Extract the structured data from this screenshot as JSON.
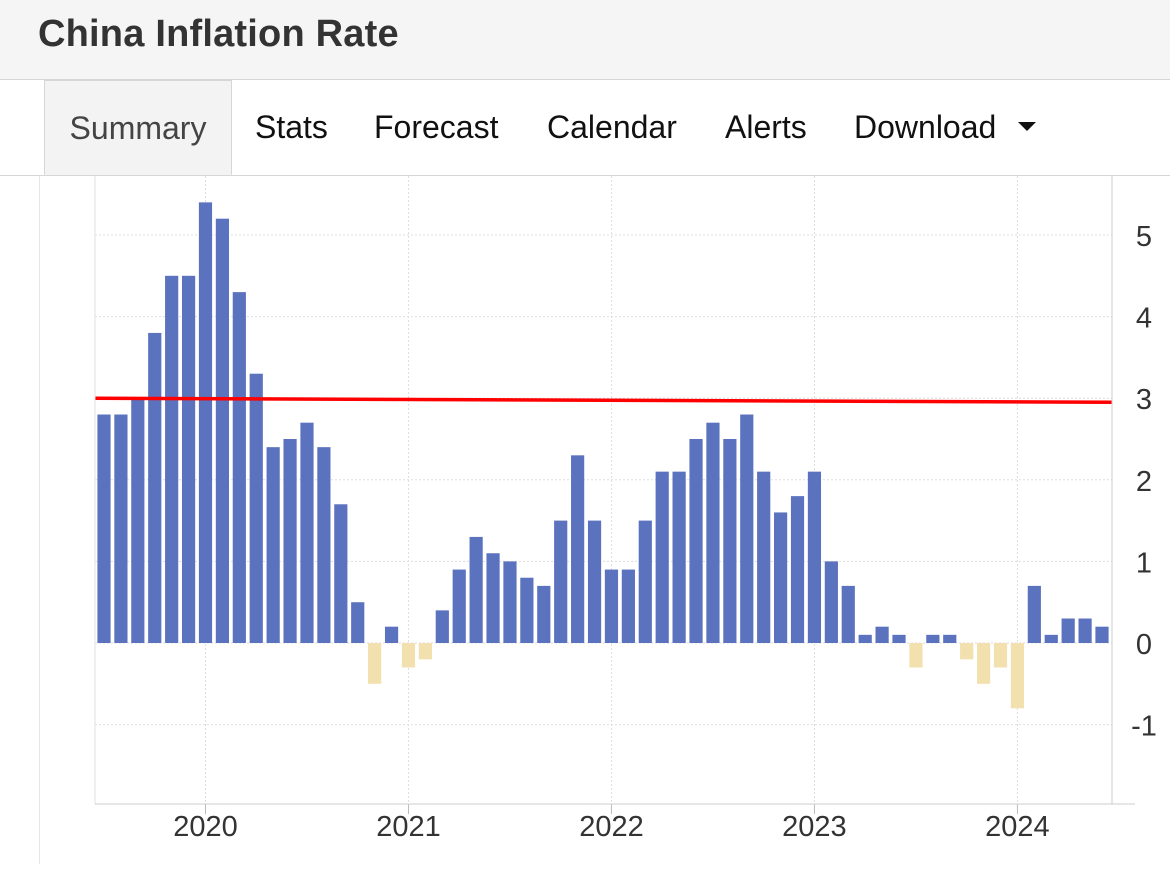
{
  "header": {
    "title": "China Inflation Rate"
  },
  "tabs": [
    {
      "label": "Summary",
      "active": true
    },
    {
      "label": "Stats"
    },
    {
      "label": "Forecast"
    },
    {
      "label": "Calendar"
    },
    {
      "label": "Alerts"
    },
    {
      "label": "Download",
      "icon": "caret-down-icon"
    }
  ],
  "colors": {
    "positive_bar": "#5B72BE",
    "negative_bar": "#F2E0AE",
    "target_line": "#FF0000",
    "grid": "#DDDDDD"
  },
  "chart_data": {
    "type": "bar",
    "title": "",
    "xlabel": "",
    "ylabel": "",
    "y_axis_position": "right",
    "ylim": [
      -2,
      5.6
    ],
    "yticks": [
      5,
      4,
      3,
      2,
      1,
      0,
      -1
    ],
    "x_ticks": [
      "2020",
      "2021",
      "2022",
      "2023",
      "2024"
    ],
    "grid": true,
    "series": [
      {
        "values": [
          2.8,
          2.8,
          3.0,
          3.8,
          4.5,
          4.5,
          5.4,
          5.2,
          4.3,
          3.3,
          2.4,
          2.5,
          2.7,
          2.4,
          1.7,
          0.5,
          -0.5,
          0.2,
          -0.3,
          -0.2,
          0.4,
          0.9,
          1.3,
          1.1,
          1.0,
          0.8,
          0.7,
          1.5,
          2.3,
          1.5,
          0.9,
          0.9,
          1.5,
          2.1,
          2.1,
          2.5,
          2.7,
          2.5,
          2.8,
          2.1,
          1.6,
          1.8,
          2.1,
          1.0,
          0.7,
          0.1,
          0.2,
          0.1,
          -0.3,
          0.1,
          0.1,
          -0.2,
          -0.5,
          -0.3,
          -0.8,
          0.7,
          0.1,
          0.3,
          0.3,
          0.2
        ]
      }
    ],
    "target_line": {
      "start": 3.0,
      "end": 2.95
    }
  }
}
